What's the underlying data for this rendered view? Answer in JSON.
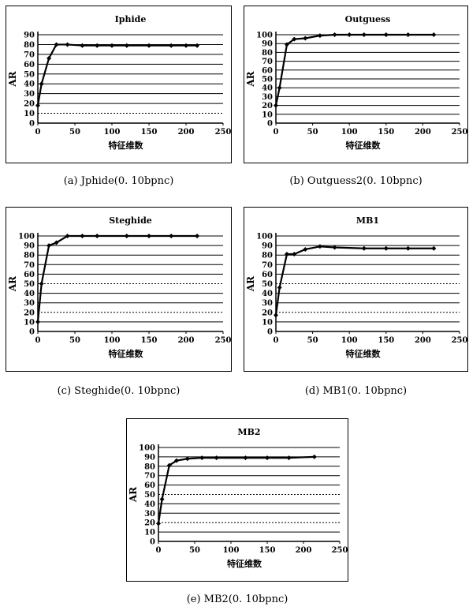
{
  "chart_data": [
    {
      "type": "line",
      "title": "Iphide",
      "xlabel": "特征维数",
      "ylabel": "AR",
      "caption": "(a) Jphide(0. 10bpnc)",
      "xlim": [
        0,
        250
      ],
      "ylim": [
        0,
        90
      ],
      "xticks": [
        0,
        50,
        100,
        150,
        200,
        250
      ],
      "yticks": [
        0,
        10,
        20,
        30,
        40,
        50,
        60,
        70,
        80,
        90
      ],
      "grid": true,
      "x": [
        0,
        5,
        15,
        25,
        40,
        60,
        80,
        100,
        120,
        150,
        180,
        200,
        215
      ],
      "y": [
        18,
        40,
        66,
        80,
        80,
        79,
        79,
        79,
        79,
        79,
        79,
        79,
        79
      ]
    },
    {
      "type": "line",
      "title": "Outguess",
      "xlabel": "特征维数",
      "ylabel": "AR",
      "caption": "(b) Outguess2(0. 10bpnc)",
      "xlim": [
        0,
        250
      ],
      "ylim": [
        0,
        100
      ],
      "xticks": [
        0,
        50,
        100,
        150,
        200,
        250
      ],
      "yticks": [
        0,
        10,
        20,
        30,
        40,
        50,
        60,
        70,
        80,
        90,
        100
      ],
      "grid": true,
      "x": [
        0,
        5,
        15,
        25,
        40,
        60,
        80,
        100,
        120,
        150,
        180,
        215
      ],
      "y": [
        20,
        40,
        89,
        95,
        96,
        99,
        100,
        100,
        100,
        100,
        100,
        100
      ]
    },
    {
      "type": "line",
      "title": "Steghide",
      "xlabel": "特征维数",
      "ylabel": "AR",
      "caption": "(c) Steghide(0. 10bpnc)",
      "xlim": [
        0,
        250
      ],
      "ylim": [
        0,
        100
      ],
      "xticks": [
        0,
        50,
        100,
        150,
        200,
        250
      ],
      "yticks": [
        0,
        10,
        20,
        30,
        40,
        50,
        60,
        70,
        80,
        90,
        100
      ],
      "grid": true,
      "x": [
        0,
        5,
        15,
        25,
        40,
        60,
        80,
        120,
        150,
        180,
        215
      ],
      "y": [
        10,
        50,
        90,
        93,
        100,
        100,
        100,
        100,
        100,
        100,
        100
      ]
    },
    {
      "type": "line",
      "title": "MB1",
      "xlabel": "特征维数",
      "ylabel": "AR",
      "caption": "(d) MB1(0. 10bpnc)",
      "xlim": [
        0,
        250
      ],
      "ylim": [
        0,
        100
      ],
      "xticks": [
        0,
        50,
        100,
        150,
        200,
        250
      ],
      "yticks": [
        0,
        10,
        20,
        30,
        40,
        50,
        60,
        70,
        80,
        90,
        100
      ],
      "grid": true,
      "x": [
        0,
        5,
        15,
        25,
        40,
        60,
        80,
        120,
        150,
        180,
        215
      ],
      "y": [
        17,
        46,
        81,
        81,
        86,
        89,
        88,
        87,
        87,
        87,
        87
      ]
    },
    {
      "type": "line",
      "title": "MB2",
      "xlabel": "特征维数",
      "ylabel": "AR",
      "caption": "(e) MB2(0. 10bpnc)",
      "xlim": [
        0,
        250
      ],
      "ylim": [
        0,
        100
      ],
      "xticks": [
        0,
        50,
        100,
        150,
        200,
        250
      ],
      "yticks": [
        0,
        10,
        20,
        30,
        40,
        50,
        60,
        70,
        80,
        90,
        100
      ],
      "grid": true,
      "x": [
        0,
        5,
        15,
        25,
        40,
        60,
        80,
        120,
        150,
        180,
        215
      ],
      "y": [
        19,
        45,
        81,
        86,
        88,
        89,
        89,
        89,
        89,
        89,
        90
      ]
    }
  ]
}
